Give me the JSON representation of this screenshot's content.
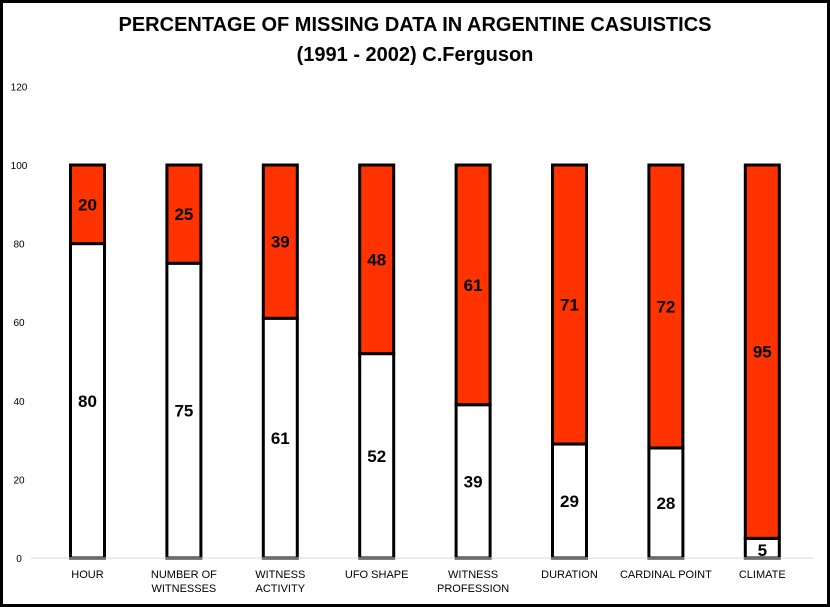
{
  "chart_data": {
    "type": "bar",
    "stacked": true,
    "title": "PERCENTAGE OF MISSING DATA IN ARGENTINE CASUISTICS",
    "subtitle": "(1991 - 2002) C.Ferguson",
    "categories": [
      "HOUR",
      "NUMBER OF WITNESSES",
      "WITNESS ACTIVITY",
      "UFO SHAPE",
      "WITNESS PROFESSION",
      "DURATION",
      "CARDINAL POINT",
      "CLIMATE"
    ],
    "category_lines": [
      [
        "HOUR"
      ],
      [
        "NUMBER OF",
        "WITNESSES"
      ],
      [
        "WITNESS ACTIVITY"
      ],
      [
        "UFO SHAPE"
      ],
      [
        "WITNESS",
        "PROFESSION"
      ],
      [
        "DURATION"
      ],
      [
        "CARDINAL POINT"
      ],
      [
        "CLIMATE"
      ]
    ],
    "series": [
      {
        "values": [
          80,
          75,
          61,
          52,
          39,
          29,
          28,
          5
        ],
        "color": "#ffffff"
      },
      {
        "values": [
          20,
          25,
          39,
          48,
          61,
          71,
          72,
          95
        ],
        "color": "#ff3300"
      }
    ],
    "ylim": [
      0,
      120
    ],
    "yticks": [
      0,
      20,
      40,
      60,
      80,
      100,
      120
    ],
    "grid": false,
    "legend": "none",
    "xlabel": "",
    "ylabel": ""
  }
}
